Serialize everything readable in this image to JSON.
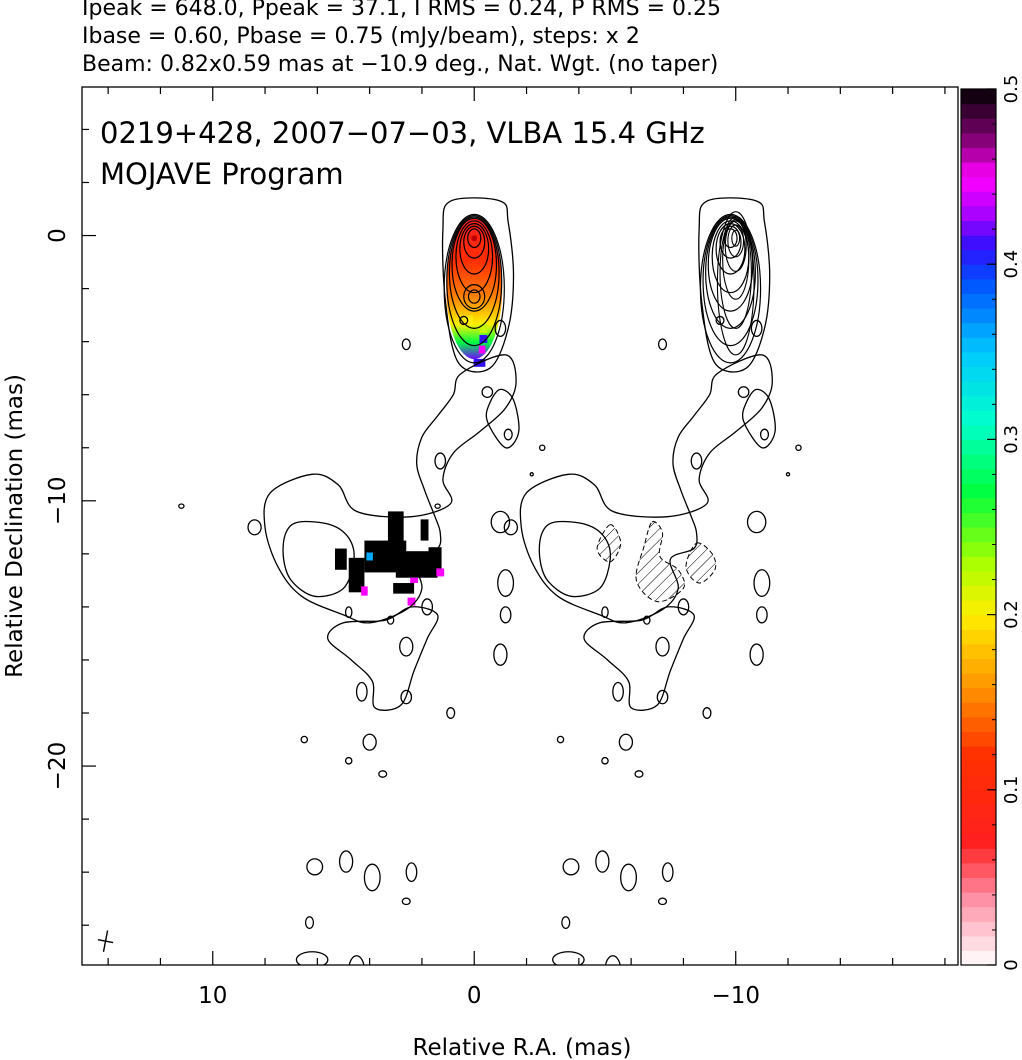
{
  "header": {
    "line1": "Ipeak = 648.0, Ppeak = 37.1, I RMS = 0.24, P RMS = 0.25",
    "line2": "Ibase = 0.60, Pbase = 0.75 (mJy/beam), steps: x 2",
    "line3": "Beam: 0.82x0.59 mas at −10.9 deg., Nat. Wgt. (no taper)"
  },
  "panel": {
    "title_line1": "0219+428, 2007−07−03, VLBA 15.4 GHz",
    "title_line2": "MOJAVE Program"
  },
  "chart_data": {
    "type": "heatmap",
    "description_source": "VLBI total intensity contours with fractional polarization colour overlay",
    "xlabel": "Relative R.A. (mas)",
    "ylabel": "Relative Declination (mas)",
    "xlim": [
      15,
      -18.5
    ],
    "ylim": [
      -27.5,
      5.6
    ],
    "x_ticks": [
      {
        "value": 10,
        "label": "10"
      },
      {
        "value": 0,
        "label": "0"
      },
      {
        "value": -10,
        "label": "−10"
      }
    ],
    "y_ticks": [
      {
        "value": 0,
        "label": "0"
      },
      {
        "value": -10,
        "label": "−10"
      },
      {
        "value": -20,
        "label": "−20"
      }
    ],
    "colorbar": {
      "min": 0,
      "max": 0.5,
      "ticks": [
        {
          "value": 0,
          "label": "0"
        },
        {
          "value": 0.1,
          "label": "0.1"
        },
        {
          "value": 0.2,
          "label": "0.2"
        },
        {
          "value": 0.3,
          "label": "0.3"
        },
        {
          "value": 0.4,
          "label": "0.4"
        },
        {
          "value": 0.5,
          "label": "0.5"
        }
      ],
      "stops": [
        {
          "v": 0.0,
          "color": "#ffffff"
        },
        {
          "v": 0.04,
          "color": "#ff8aa0"
        },
        {
          "v": 0.07,
          "color": "#ff2020"
        },
        {
          "v": 0.12,
          "color": "#ff3000"
        },
        {
          "v": 0.16,
          "color": "#ff9800"
        },
        {
          "v": 0.2,
          "color": "#ffee00"
        },
        {
          "v": 0.23,
          "color": "#aaff00"
        },
        {
          "v": 0.27,
          "color": "#00ff40"
        },
        {
          "v": 0.31,
          "color": "#00ffcc"
        },
        {
          "v": 0.35,
          "color": "#00c8ff"
        },
        {
          "v": 0.39,
          "color": "#0050ff"
        },
        {
          "v": 0.41,
          "color": "#3010ff"
        },
        {
          "v": 0.43,
          "color": "#b000ff"
        },
        {
          "v": 0.45,
          "color": "#ff00ff"
        },
        {
          "v": 0.47,
          "color": "#8a007a"
        },
        {
          "v": 0.5,
          "color": "#000000"
        }
      ]
    },
    "panels": [
      {
        "name": "total intensity + fractional polarization",
        "x_offset_mas": 0
      },
      {
        "name": "polarized intensity",
        "x_offset_mas": -9.8
      }
    ],
    "core_contours": {
      "center": [
        0,
        -0.1
      ],
      "rings": [
        {
          "rx": 0.25,
          "ry": 0.35,
          "dy": 0
        },
        {
          "rx": 0.4,
          "ry": 0.6,
          "dy": -0.15
        },
        {
          "rx": 0.55,
          "ry": 0.95,
          "dy": -0.4
        },
        {
          "rx": 0.7,
          "ry": 1.35,
          "dy": -0.7
        },
        {
          "rx": 0.85,
          "ry": 1.75,
          "dy": -1.0
        },
        {
          "rx": 0.95,
          "ry": 2.1,
          "dy": -1.3
        },
        {
          "rx": 1.05,
          "ry": 2.45,
          "dy": -1.6
        },
        {
          "rx": 1.15,
          "ry": 2.8,
          "dy": -1.9
        }
      ]
    },
    "secondary_contours": {
      "center": [
        0,
        -2.3
      ],
      "rings": [
        {
          "rx": 0.22,
          "ry": 0.25
        },
        {
          "rx": 0.4,
          "ry": 0.45
        }
      ]
    },
    "outer_contours": [
      [
        [
          -1.0,
          1.3
        ],
        [
          0.9,
          1.3
        ],
        [
          1.2,
          0.2
        ],
        [
          1.1,
          -2.5
        ],
        [
          0.6,
          -4.8
        ],
        [
          -0.6,
          -5.0
        ],
        [
          -1.3,
          -3.5
        ],
        [
          -1.5,
          -1.5
        ],
        [
          -1.3,
          0.5
        ]
      ],
      [
        [
          -1.2,
          -4.5
        ],
        [
          -1.6,
          -5.5
        ],
        [
          -1.2,
          -6.5
        ],
        [
          -0.2,
          -7.4
        ],
        [
          0.8,
          -8.2
        ],
        [
          1.2,
          -9.2
        ],
        [
          0.9,
          -10.1
        ],
        [
          2.4,
          -10.6
        ],
        [
          4.5,
          -10.4
        ],
        [
          5.2,
          -9.4
        ],
        [
          6.2,
          -9.0
        ],
        [
          7.8,
          -9.7
        ],
        [
          8.0,
          -11.0
        ],
        [
          7.5,
          -12.5
        ],
        [
          6.6,
          -13.6
        ],
        [
          5.0,
          -14.3
        ],
        [
          4.0,
          -14.6
        ],
        [
          2.6,
          -14.1
        ],
        [
          2.0,
          -13.3
        ],
        [
          2.3,
          -12.2
        ],
        [
          1.4,
          -11.8
        ],
        [
          1.3,
          -11.2
        ],
        [
          1.5,
          -10.6
        ],
        [
          1.9,
          -9.6
        ],
        [
          2.2,
          -8.6
        ],
        [
          2.0,
          -7.6
        ],
        [
          1.4,
          -6.8
        ],
        [
          0.8,
          -6.0
        ],
        [
          0.5,
          -5.2
        ]
      ],
      [
        [
          7.2,
          -11.2
        ],
        [
          6.7,
          -10.8
        ],
        [
          5.5,
          -10.9
        ],
        [
          4.8,
          -11.4
        ],
        [
          4.6,
          -12.2
        ],
        [
          5.0,
          -13.3
        ],
        [
          6.1,
          -13.6
        ],
        [
          7.0,
          -13.0
        ],
        [
          7.3,
          -12.1
        ]
      ],
      [
        [
          5.0,
          -14.6
        ],
        [
          5.6,
          -15.2
        ],
        [
          4.7,
          -16.0
        ],
        [
          3.9,
          -16.8
        ],
        [
          3.8,
          -17.8
        ],
        [
          2.8,
          -17.7
        ],
        [
          2.3,
          -16.4
        ],
        [
          1.8,
          -15.2
        ],
        [
          1.4,
          -14.3
        ],
        [
          2.4,
          -14.0
        ],
        [
          3.4,
          -14.5
        ]
      ],
      [
        [
          -1.0,
          -5.8
        ],
        [
          -1.5,
          -6.2
        ],
        [
          -1.7,
          -7.4
        ],
        [
          -1.2,
          -8.0
        ],
        [
          -0.5,
          -7.0
        ],
        [
          -0.6,
          -6.3
        ]
      ]
    ],
    "islands": [
      [
        11.2,
        -10.2,
        0.1,
        0.08
      ],
      [
        8.4,
        -11.0,
        0.25,
        0.28
      ],
      [
        4.8,
        -14.2,
        0.12,
        0.2
      ],
      [
        3.2,
        -14.5,
        0.12,
        0.15
      ],
      [
        1.8,
        -14.0,
        0.2,
        0.3
      ],
      [
        2.6,
        -15.5,
        0.25,
        0.35
      ],
      [
        -1.0,
        -15.8,
        0.25,
        0.4
      ],
      [
        -1.2,
        -14.3,
        0.2,
        0.3
      ],
      [
        -1.0,
        -10.8,
        0.35,
        0.4
      ],
      [
        -1.2,
        -13.1,
        0.3,
        0.5
      ],
      [
        2.6,
        -17.4,
        0.2,
        0.25
      ],
      [
        4.3,
        -17.2,
        0.2,
        0.35
      ],
      [
        0.9,
        -18.0,
        0.15,
        0.2
      ],
      [
        4.0,
        -19.1,
        0.25,
        0.3
      ],
      [
        6.5,
        -19.0,
        0.12,
        0.12
      ],
      [
        4.8,
        -19.8,
        0.12,
        0.12
      ],
      [
        3.5,
        -20.3,
        0.15,
        0.12
      ],
      [
        6.1,
        -23.8,
        0.3,
        0.3
      ],
      [
        4.9,
        -23.6,
        0.25,
        0.4
      ],
      [
        3.9,
        -24.2,
        0.3,
        0.5
      ],
      [
        2.4,
        -24.0,
        0.2,
        0.35
      ],
      [
        2.6,
        -25.1,
        0.15,
        0.12
      ],
      [
        6.3,
        -25.9,
        0.15,
        0.22
      ],
      [
        6.2,
        -27.3,
        0.6,
        0.3
      ],
      [
        4.5,
        -27.7,
        0.3,
        0.55
      ],
      [
        3.7,
        -27.9,
        0.2,
        0.3
      ],
      [
        1.3,
        -8.5,
        0.2,
        0.3
      ],
      [
        -1.3,
        -7.5,
        0.15,
        0.2
      ],
      [
        -0.5,
        -5.9,
        0.2,
        0.2
      ],
      [
        2.6,
        -4.1,
        0.15,
        0.2
      ],
      [
        -2.6,
        -8.0,
        0.1,
        0.1
      ],
      [
        -1.0,
        -3.5,
        0.2,
        0.3
      ],
      [
        0.4,
        -3.2,
        0.15,
        0.15
      ],
      [
        -2.2,
        -9.0,
        0.06,
        0.06
      ]
    ],
    "frac_pol_pixels": [
      [
        0.3,
        -3.2,
        0.5,
        0.35,
        0.2
      ],
      [
        -0.35,
        -3.5,
        0.3,
        0.35,
        0.22
      ],
      [
        -0.35,
        -3.9,
        0.3,
        0.3,
        0.41
      ],
      [
        -0.3,
        -4.3,
        0.25,
        0.3,
        0.45
      ],
      [
        -0.2,
        -4.8,
        0.45,
        0.3,
        0.41
      ],
      [
        5.1,
        -12.2,
        0.45,
        0.8,
        0.5
      ],
      [
        4.5,
        -12.8,
        0.6,
        1.3,
        0.5
      ],
      [
        3.4,
        -12.1,
        1.6,
        1.2,
        0.5
      ],
      [
        2.2,
        -12.4,
        1.6,
        1.0,
        0.5
      ],
      [
        3.0,
        -11.0,
        0.6,
        1.2,
        0.5
      ],
      [
        1.9,
        -11.1,
        0.3,
        0.8,
        0.5
      ],
      [
        4.0,
        -12.1,
        0.25,
        0.3,
        0.36
      ],
      [
        4.2,
        -13.4,
        0.25,
        0.35,
        0.45
      ],
      [
        2.7,
        -13.3,
        0.8,
        0.4,
        0.5
      ],
      [
        2.3,
        -13.0,
        0.3,
        0.2,
        0.45
      ],
      [
        1.5,
        -12.2,
        0.5,
        0.9,
        0.5
      ],
      [
        1.3,
        -12.7,
        0.3,
        0.3,
        0.45
      ],
      [
        2.4,
        -13.8,
        0.3,
        0.3,
        0.45
      ]
    ],
    "pol_inner_contours": {
      "center": [
        -10.0,
        -0.1
      ],
      "rings": [
        {
          "rx": 0.15,
          "ry": 0.3,
          "dy": 0
        },
        {
          "rx": 0.3,
          "ry": 0.6,
          "dy": -0.1
        },
        {
          "rx": 0.4,
          "ry": 0.95,
          "dy": -0.3
        },
        {
          "rx": 0.5,
          "ry": 1.5,
          "dy": -0.8
        },
        {
          "rx": 0.6,
          "ry": 2.1,
          "dy": -1.3
        },
        {
          "rx": 0.7,
          "ry": 2.7,
          "dy": -1.7
        }
      ]
    },
    "hatched_regions": [
      [
        [
          4.6,
          -10.9
        ],
        [
          5.1,
          -11.8
        ],
        [
          4.6,
          -12.3
        ],
        [
          4.2,
          -11.6
        ]
      ],
      [
        [
          3.0,
          -10.8
        ],
        [
          2.6,
          -11.2
        ],
        [
          2.7,
          -12.1
        ],
        [
          2.0,
          -12.6
        ],
        [
          1.8,
          -13.3
        ],
        [
          2.8,
          -13.8
        ],
        [
          3.6,
          -13.0
        ],
        [
          3.3,
          -11.7
        ]
      ],
      [
        [
          1.3,
          -11.6
        ],
        [
          0.7,
          -12.0
        ],
        [
          0.6,
          -12.6
        ],
        [
          1.2,
          -13.1
        ],
        [
          1.7,
          -12.5
        ]
      ]
    ],
    "beam": {
      "major": 0.82,
      "minor": 0.59,
      "pa_deg": -10.9
    }
  }
}
